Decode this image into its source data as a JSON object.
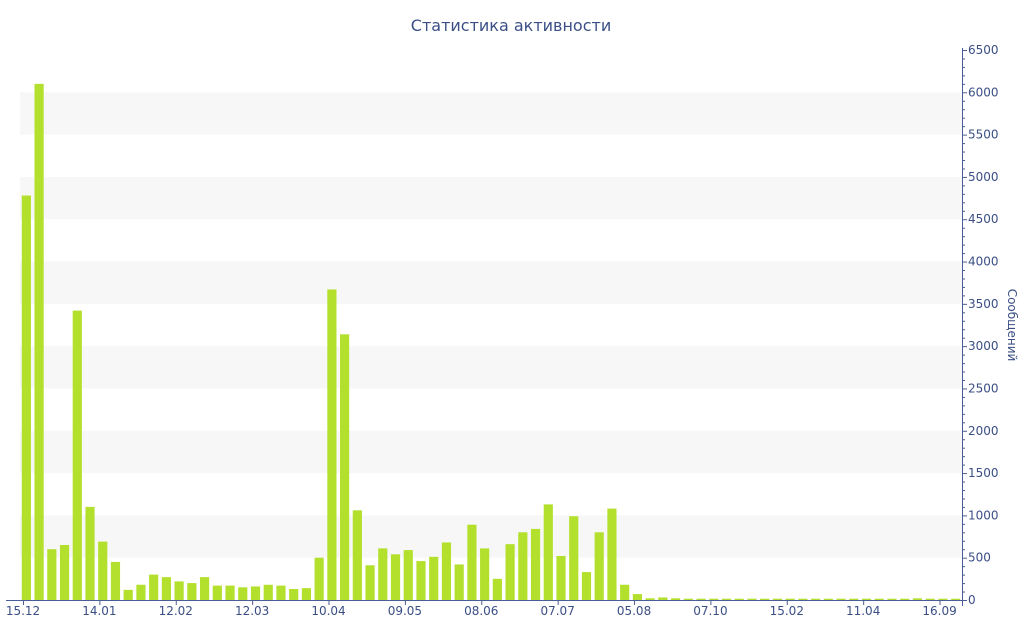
{
  "chart_data": {
    "type": "bar",
    "title": "Статистика активности",
    "ylabel": "Сообщений",
    "ylim": [
      0,
      6500
    ],
    "yticks": [
      0,
      500,
      1000,
      1500,
      2000,
      2500,
      3000,
      3500,
      4000,
      4500,
      5000,
      5500,
      6000,
      6500
    ],
    "x_tick_labels": [
      {
        "label": "15.12",
        "index": 0
      },
      {
        "label": "14.01",
        "index": 6
      },
      {
        "label": "12.02",
        "index": 12
      },
      {
        "label": "12.03",
        "index": 18
      },
      {
        "label": "10.04",
        "index": 24
      },
      {
        "label": "09.05",
        "index": 30
      },
      {
        "label": "08.06",
        "index": 36
      },
      {
        "label": "07.07",
        "index": 42
      },
      {
        "label": "05.08",
        "index": 48
      },
      {
        "label": "07.10",
        "index": 54
      },
      {
        "label": "15.02",
        "index": 60
      },
      {
        "label": "11.04",
        "index": 66
      },
      {
        "label": "16.09",
        "index": 72
      }
    ],
    "values": [
      4780,
      6100,
      600,
      650,
      3420,
      1100,
      690,
      450,
      120,
      180,
      300,
      270,
      220,
      200,
      270,
      170,
      170,
      150,
      160,
      180,
      170,
      130,
      140,
      500,
      3670,
      3140,
      1060,
      410,
      610,
      540,
      590,
      460,
      510,
      680,
      420,
      890,
      610,
      250,
      660,
      800,
      840,
      1130,
      520,
      990,
      330,
      800,
      1080,
      180,
      70,
      20,
      30,
      20,
      15,
      15,
      15,
      15,
      15,
      15,
      15,
      15,
      15,
      15,
      15,
      15,
      15,
      15,
      15,
      15,
      15,
      15,
      20,
      15,
      15,
      15
    ],
    "bar_color": "#b3e02c",
    "grid": "alternating horizontal bands",
    "band_color": "#f7f7f7",
    "axis_color": "#4a5d96",
    "legend": "none"
  }
}
